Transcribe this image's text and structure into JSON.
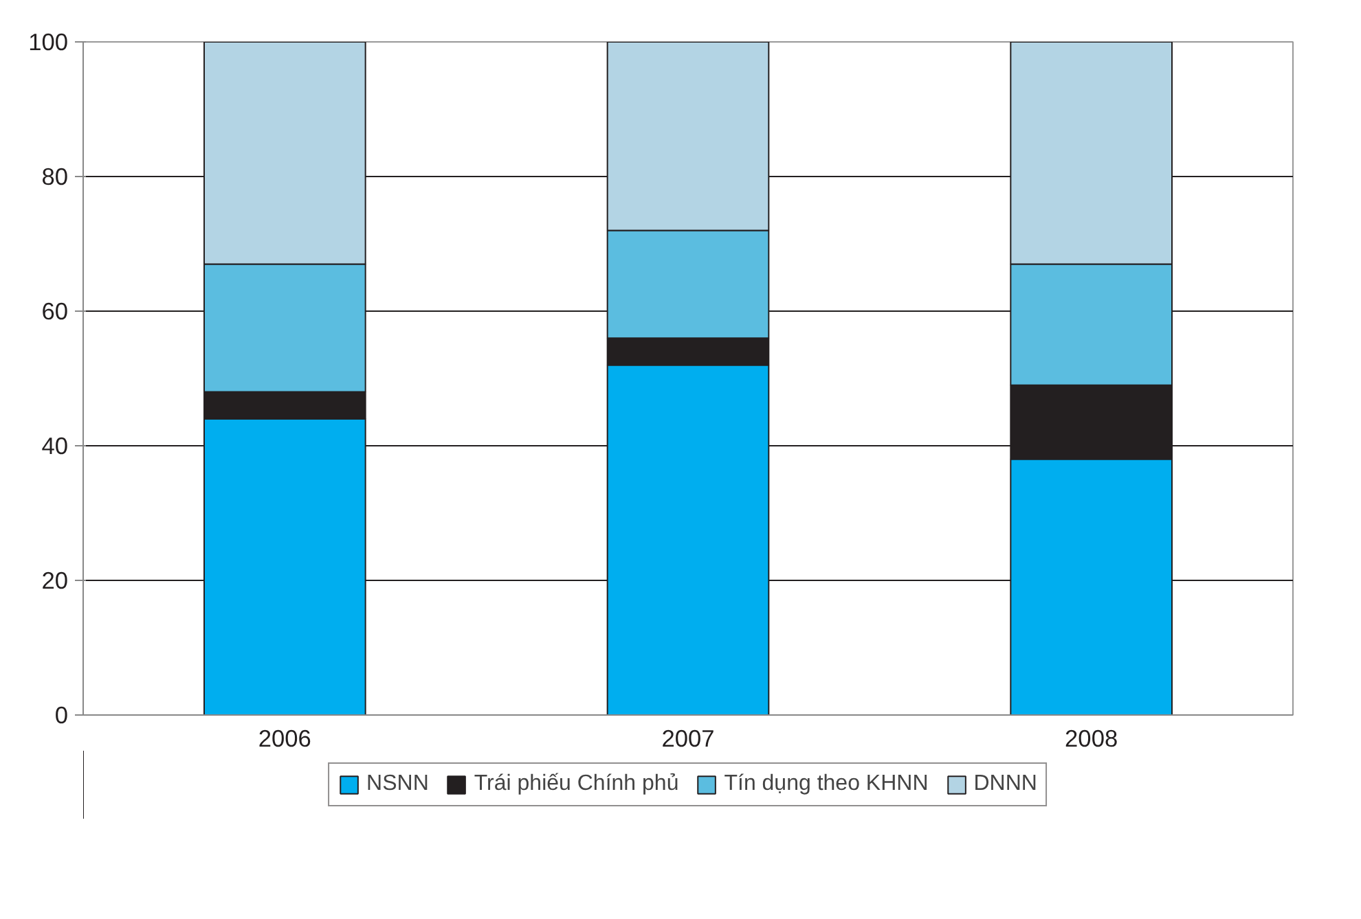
{
  "chart_data": {
    "type": "bar",
    "stacked": true,
    "categories": [
      "2006",
      "2007",
      "2008"
    ],
    "series": [
      {
        "name": "NSNN",
        "color": "#00aeef",
        "values": [
          44,
          52,
          38
        ]
      },
      {
        "name": "Trái phiếu Chính phủ",
        "color": "#231f20",
        "values": [
          4,
          4,
          11
        ]
      },
      {
        "name": "Tín dụng theo KHNN",
        "color": "#5bbde0",
        "values": [
          19,
          16,
          18
        ]
      },
      {
        "name": "DNNN",
        "color": "#b3d4e4",
        "values": [
          33,
          28,
          33
        ]
      }
    ],
    "ylim": [
      0,
      100
    ],
    "yticks": [
      0,
      20,
      40,
      60,
      80,
      100
    ],
    "grid": "y",
    "legend": "bottom"
  }
}
